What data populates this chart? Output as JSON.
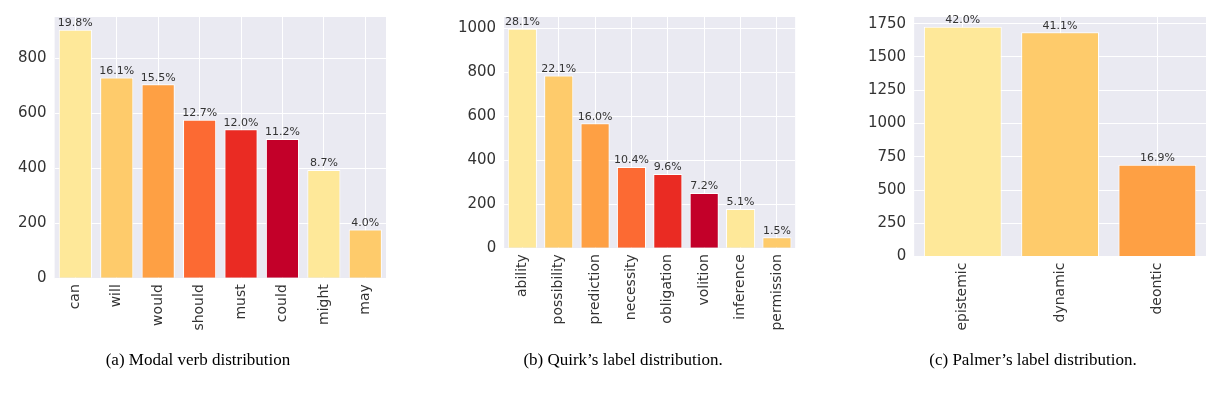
{
  "chart_data": [
    {
      "type": "bar",
      "title": "(a) Modal verb distribution",
      "categories": [
        "can",
        "will",
        "would",
        "should",
        "must",
        "could",
        "might",
        "may"
      ],
      "values": [
        904,
        730,
        705,
        576,
        542,
        506,
        394,
        177
      ],
      "colors": [
        "#fee899",
        "#fecb6b",
        "#fea044",
        "#fc6a33",
        "#ea2b23",
        "#c30029",
        "#fee899",
        "#fecb6b"
      ],
      "ylim": [
        0,
        950
      ],
      "yticks": [
        0,
        200,
        400,
        600,
        800
      ],
      "grid": true,
      "annotations": [
        {
          "text": "19.8%",
          "x": "can",
          "y": 904
        },
        {
          "text": "16.1%",
          "x": "will",
          "y": 730
        },
        {
          "text": "15.5%",
          "x": "would",
          "y": 705
        },
        {
          "text": "12.7%",
          "x": "should",
          "y": 576
        },
        {
          "text": "12.0%",
          "x": "must",
          "y": 542
        },
        {
          "text": "11.2%",
          "x": "could",
          "y": 506
        },
        {
          "text": "8.7%",
          "x": "might",
          "y": 394
        },
        {
          "text": "4.0%",
          "x": "may",
          "y": 177
        }
      ]
    },
    {
      "type": "bar",
      "title": "(b) Quirk’s label distribution.",
      "categories": [
        "ability",
        "possibility",
        "prediction",
        "necessity",
        "obligation",
        "volition",
        "inference",
        "permission"
      ],
      "values": [
        997,
        784,
        567,
        369,
        337,
        251,
        178,
        49
      ],
      "colors": [
        "#fee899",
        "#fecb6b",
        "#fea044",
        "#fc6a33",
        "#ea2b23",
        "#c30029",
        "#fee899",
        "#fecb6b"
      ],
      "ylim": [
        0,
        1050
      ],
      "yticks": [
        0,
        200,
        400,
        600,
        800,
        1000
      ],
      "grid": true,
      "annotations": [
        {
          "text": "28.1%",
          "x": "ability",
          "y": 997
        },
        {
          "text": "22.1%",
          "x": "possibility",
          "y": 784
        },
        {
          "text": "16.0%",
          "x": "prediction",
          "y": 567
        },
        {
          "text": "10.4%",
          "x": "necessity",
          "y": 369
        },
        {
          "text": "9.6%",
          "x": "obligation",
          "y": 337
        },
        {
          "text": "7.2%",
          "x": "volition",
          "y": 251
        },
        {
          "text": "5.1%",
          "x": "inference",
          "y": 178
        },
        {
          "text": "1.5%",
          "x": "permission",
          "y": 49
        }
      ]
    },
    {
      "type": "bar",
      "title": "(c) Palmer’s label distribution.",
      "categories": [
        "epistemic",
        "dynamic",
        "deontic"
      ],
      "values": [
        1726,
        1686,
        690
      ],
      "colors": [
        "#fee899",
        "#fecb6b",
        "#fea044"
      ],
      "ylim": [
        0,
        1800
      ],
      "yticks": [
        0,
        250,
        500,
        750,
        1000,
        1250,
        1500,
        1750
      ],
      "grid": true,
      "annotations": [
        {
          "text": "42.0%",
          "x": "epistemic",
          "y": 1726
        },
        {
          "text": "41.1%",
          "x": "dynamic",
          "y": 1686
        },
        {
          "text": "16.9%",
          "x": "deontic",
          "y": 690
        }
      ]
    }
  ]
}
